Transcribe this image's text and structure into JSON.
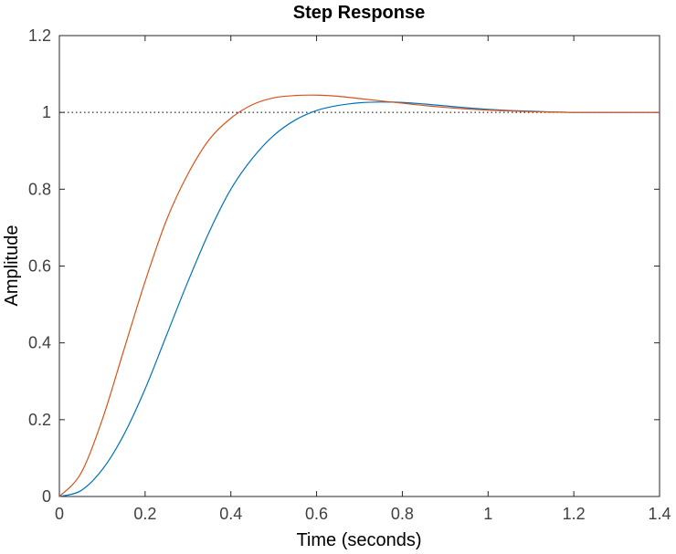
{
  "chart_data": {
    "type": "line",
    "title": "Step Response",
    "xlabel": "Time (seconds)",
    "ylabel": "Amplitude",
    "xlim": [
      0,
      1.4
    ],
    "ylim": [
      0,
      1.2
    ],
    "xticks": [
      0,
      0.2,
      0.4,
      0.6,
      0.8,
      1,
      1.2,
      1.4
    ],
    "yticks": [
      0,
      0.2,
      0.4,
      0.6,
      0.8,
      1,
      1.2
    ],
    "xtick_labels": [
      "0",
      "0.2",
      "0.4",
      "0.6",
      "0.8",
      "1",
      "1.2",
      "1.4"
    ],
    "ytick_labels": [
      "0",
      "0.2",
      "0.4",
      "0.6",
      "0.8",
      "1",
      "1.2"
    ],
    "grid": false,
    "reference_line": {
      "y": 1,
      "style": "dotted",
      "color": "#000000"
    },
    "series": [
      {
        "color": "#0072BD",
        "x": [
          0,
          0.05,
          0.1,
          0.15,
          0.2,
          0.25,
          0.3,
          0.35,
          0.4,
          0.45,
          0.5,
          0.55,
          0.6,
          0.65,
          0.7,
          0.75,
          0.8,
          0.85,
          0.9,
          0.95,
          1.0,
          1.05,
          1.1,
          1.15,
          1.2,
          1.25,
          1.3,
          1.35,
          1.4
        ],
        "values": [
          0,
          0.015,
          0.07,
          0.16,
          0.28,
          0.42,
          0.56,
          0.69,
          0.8,
          0.88,
          0.94,
          0.98,
          1.005,
          1.018,
          1.025,
          1.027,
          1.026,
          1.022,
          1.017,
          1.012,
          1.008,
          1.005,
          1.003,
          1.001,
          1.0,
          1.0,
          1.0,
          1.0,
          1.0
        ]
      },
      {
        "color": "#D95319",
        "x": [
          0,
          0.05,
          0.1,
          0.15,
          0.2,
          0.25,
          0.3,
          0.35,
          0.4,
          0.45,
          0.5,
          0.55,
          0.6,
          0.65,
          0.7,
          0.75,
          0.8,
          0.85,
          0.9,
          0.95,
          1.0,
          1.05,
          1.1,
          1.15,
          1.2,
          1.25,
          1.3,
          1.35,
          1.4
        ],
        "values": [
          0,
          0.06,
          0.2,
          0.38,
          0.56,
          0.72,
          0.84,
          0.93,
          0.985,
          1.02,
          1.038,
          1.044,
          1.045,
          1.042,
          1.036,
          1.03,
          1.024,
          1.018,
          1.013,
          1.009,
          1.006,
          1.004,
          1.002,
          1.001,
          1.0,
          1.0,
          1.0,
          1.0,
          1.0
        ]
      }
    ]
  }
}
